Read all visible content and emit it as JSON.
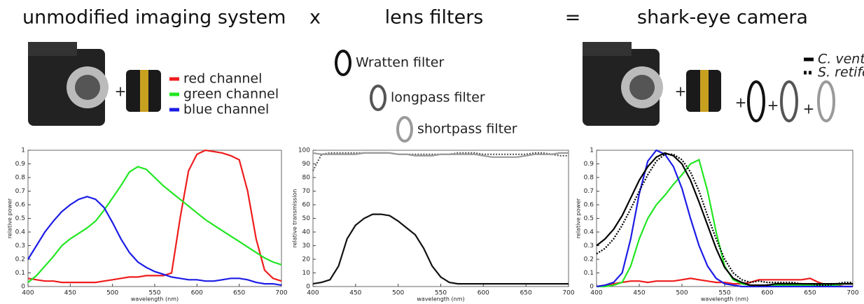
{
  "header": {
    "left": "unmodified imaging system",
    "times": "x",
    "middle": "lens filters",
    "equals": "=",
    "right": "shark-eye camera"
  },
  "plus": "+",
  "chart_data": [
    {
      "type": "line",
      "x": [
        400,
        410,
        420,
        430,
        440,
        450,
        460,
        470,
        480,
        490,
        500,
        510,
        520,
        530,
        540,
        550,
        560,
        570,
        580,
        590,
        600,
        610,
        620,
        630,
        640,
        650,
        660,
        670,
        680,
        690,
        700
      ],
      "xlim": [
        400,
        700
      ],
      "xticks": [
        400,
        450,
        500,
        550,
        600,
        650,
        700
      ],
      "ylim": [
        0,
        1
      ],
      "yticks": [
        0,
        0.1,
        0.2,
        0.3,
        0.4,
        0.5,
        0.6,
        0.7,
        0.8,
        0.9,
        1
      ],
      "xlabel": "wavelength (nm)",
      "ylabel": "relative power",
      "series": [
        {
          "name": "red channel",
          "color": "#ee1c1c",
          "values": [
            0.06,
            0.05,
            0.04,
            0.04,
            0.03,
            0.03,
            0.03,
            0.03,
            0.03,
            0.04,
            0.05,
            0.06,
            0.07,
            0.07,
            0.08,
            0.08,
            0.08,
            0.1,
            0.5,
            0.85,
            0.97,
            1.0,
            0.99,
            0.98,
            0.96,
            0.93,
            0.7,
            0.35,
            0.12,
            0.06,
            0.04
          ]
        },
        {
          "name": "green channel",
          "color": "#22e622",
          "values": [
            0.03,
            0.08,
            0.15,
            0.22,
            0.3,
            0.35,
            0.39,
            0.43,
            0.48,
            0.56,
            0.65,
            0.74,
            0.84,
            0.88,
            0.86,
            0.8,
            0.74,
            0.69,
            0.64,
            0.59,
            0.54,
            0.49,
            0.45,
            0.41,
            0.37,
            0.33,
            0.29,
            0.25,
            0.21,
            0.18,
            0.16
          ]
        },
        {
          "name": "blue channel",
          "color": "#1c1ce6",
          "values": [
            0.2,
            0.3,
            0.4,
            0.48,
            0.55,
            0.6,
            0.64,
            0.66,
            0.64,
            0.58,
            0.47,
            0.35,
            0.25,
            0.18,
            0.14,
            0.11,
            0.09,
            0.07,
            0.06,
            0.05,
            0.05,
            0.04,
            0.04,
            0.05,
            0.06,
            0.06,
            0.05,
            0.03,
            0.02,
            0.02,
            0.01
          ]
        }
      ]
    },
    {
      "type": "line",
      "x": [
        400,
        410,
        420,
        430,
        440,
        450,
        460,
        470,
        480,
        490,
        500,
        510,
        520,
        530,
        540,
        550,
        560,
        570,
        580,
        590,
        600,
        610,
        620,
        630,
        640,
        650,
        660,
        670,
        680,
        690,
        700
      ],
      "xlim": [
        400,
        700
      ],
      "xticks": [
        400,
        450,
        500,
        550,
        600,
        650,
        700
      ],
      "ylim": [
        0,
        100
      ],
      "yticks": [
        0,
        10,
        20,
        30,
        40,
        50,
        60,
        70,
        80,
        90,
        100
      ],
      "xlabel": "wavelength (nm)",
      "ylabel": "relative transmission",
      "series": [
        {
          "name": "Wratten filter",
          "color": "#111111",
          "values": [
            2,
            3,
            5,
            15,
            35,
            45,
            50,
            53,
            53,
            52,
            48,
            43,
            38,
            28,
            15,
            7,
            3,
            2,
            2,
            2,
            2,
            2,
            2,
            2,
            2,
            2,
            2,
            2,
            2,
            2,
            2
          ]
        },
        {
          "name": "longpass filter",
          "color": "#555555",
          "dash": true,
          "values": [
            85,
            97,
            98,
            98,
            98,
            98,
            98,
            98,
            98,
            98,
            97,
            97,
            97,
            97,
            97,
            97,
            97,
            98,
            98,
            98,
            97,
            97,
            97,
            97,
            97,
            97,
            98,
            98,
            97,
            96,
            96
          ]
        },
        {
          "name": "shortpass filter",
          "color": "#9a9a9a",
          "values": [
            98,
            97,
            97,
            97,
            97,
            97,
            98,
            98,
            98,
            98,
            97,
            97,
            96,
            96,
            96,
            97,
            97,
            97,
            97,
            97,
            96,
            95,
            95,
            95,
            95,
            96,
            97,
            97,
            97,
            98,
            98
          ]
        }
      ]
    },
    {
      "type": "line",
      "x": [
        400,
        410,
        420,
        430,
        440,
        450,
        460,
        470,
        480,
        490,
        500,
        510,
        520,
        530,
        540,
        550,
        560,
        570,
        580,
        590,
        600,
        610,
        620,
        630,
        640,
        650,
        660,
        670,
        680,
        690,
        700
      ],
      "xlim": [
        400,
        700
      ],
      "xticks": [
        400,
        450,
        500,
        550,
        600,
        650,
        700
      ],
      "ylim": [
        0,
        1
      ],
      "yticks": [
        0,
        0.1,
        0.2,
        0.3,
        0.4,
        0.5,
        0.6,
        0.7,
        0.8,
        0.9,
        1
      ],
      "xlabel": "wavelength (nm)",
      "ylabel": "relative power",
      "series": [
        {
          "color": "#ee1c1c",
          "values": [
            0,
            0.01,
            0.02,
            0.03,
            0.04,
            0.04,
            0.03,
            0.04,
            0.04,
            0.04,
            0.05,
            0.06,
            0.05,
            0.04,
            0.03,
            0.03,
            0.02,
            0.02,
            0.03,
            0.05,
            0.05,
            0.05,
            0.05,
            0.05,
            0.05,
            0.06,
            0.03,
            0.01,
            0.01,
            0,
            0
          ]
        },
        {
          "color": "#22e622",
          "values": [
            0,
            0,
            0.01,
            0.03,
            0.15,
            0.35,
            0.5,
            0.6,
            0.67,
            0.75,
            0.82,
            0.9,
            0.93,
            0.7,
            0.4,
            0.15,
            0.05,
            0.02,
            0.01,
            0.01,
            0.01,
            0.01,
            0.01,
            0.01,
            0.01,
            0.01,
            0.01,
            0.01,
            0.01,
            0.02,
            0.02
          ]
        },
        {
          "color": "#1c1ce6",
          "values": [
            0,
            0.01,
            0.03,
            0.1,
            0.35,
            0.68,
            0.92,
            1.0,
            0.97,
            0.88,
            0.72,
            0.5,
            0.3,
            0.15,
            0.06,
            0.02,
            0.01,
            0,
            0,
            0,
            0,
            0,
            0,
            0,
            0,
            0,
            0,
            0,
            0,
            0,
            0
          ]
        },
        {
          "name": "C. ventriosum",
          "color": "#000000",
          "values": [
            0.3,
            0.35,
            0.42,
            0.52,
            0.65,
            0.78,
            0.88,
            0.95,
            0.98,
            0.96,
            0.9,
            0.78,
            0.62,
            0.45,
            0.28,
            0.14,
            0.06,
            0.03,
            0.01,
            0.01,
            0.01,
            0.02,
            0.02,
            0.02,
            0.02,
            0.02,
            0.02,
            0.02,
            0.02,
            0.02,
            0.02
          ]
        },
        {
          "name": "S. retifer",
          "color": "#000000",
          "dash": true,
          "values": [
            0.24,
            0.28,
            0.35,
            0.45,
            0.57,
            0.7,
            0.82,
            0.92,
            0.97,
            0.97,
            0.93,
            0.84,
            0.7,
            0.52,
            0.35,
            0.2,
            0.1,
            0.05,
            0.03,
            0.04,
            0.03,
            0.03,
            0.03,
            0.03,
            0.02,
            0.02,
            0.01,
            0.01,
            0.02,
            0.03,
            0.03
          ]
        }
      ]
    }
  ]
}
